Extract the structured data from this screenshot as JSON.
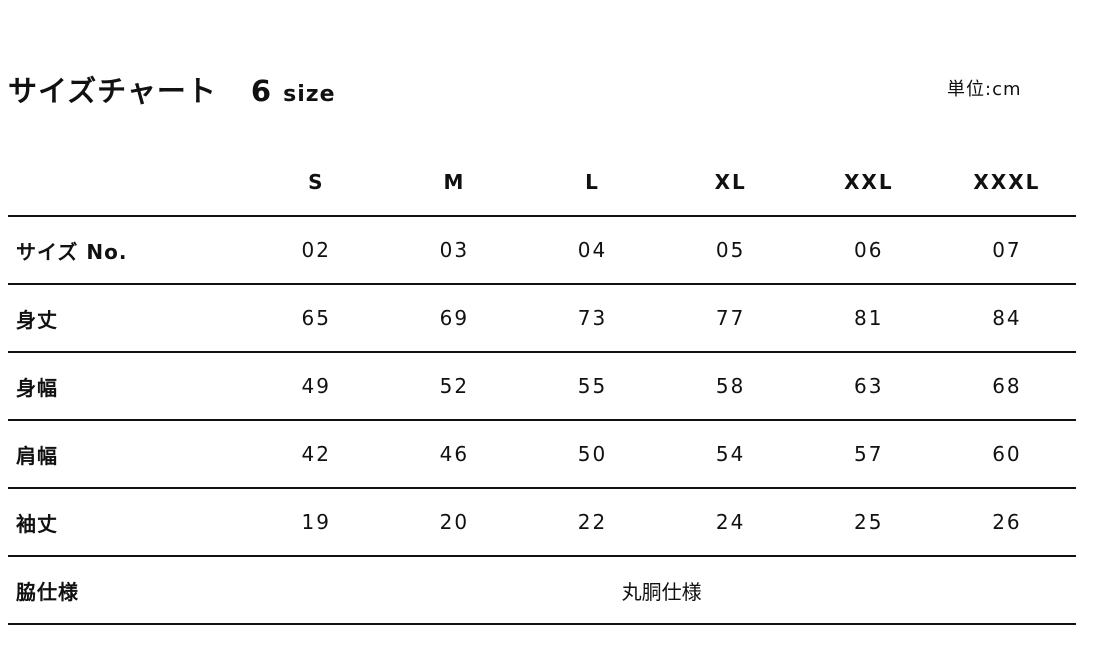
{
  "title": {
    "main": "サイズチャート",
    "count": "6",
    "count_unit": "size"
  },
  "unit_label": "単位:cm",
  "table": {
    "columns": [
      "S",
      "M",
      "L",
      "XL",
      "XXL",
      "XXXL"
    ],
    "rows": [
      {
        "label": "サイズ No.",
        "values": [
          "02",
          "03",
          "04",
          "05",
          "06",
          "07"
        ]
      },
      {
        "label": "身丈",
        "values": [
          "65",
          "69",
          "73",
          "77",
          "81",
          "84"
        ]
      },
      {
        "label": "身幅",
        "values": [
          "49",
          "52",
          "55",
          "58",
          "63",
          "68"
        ]
      },
      {
        "label": "肩幅",
        "values": [
          "42",
          "46",
          "50",
          "54",
          "57",
          "60"
        ]
      },
      {
        "label": "袖丈",
        "values": [
          "19",
          "20",
          "22",
          "24",
          "25",
          "26"
        ]
      }
    ],
    "side_spec": {
      "label": "脇仕様",
      "value": "丸胴仕様"
    }
  }
}
